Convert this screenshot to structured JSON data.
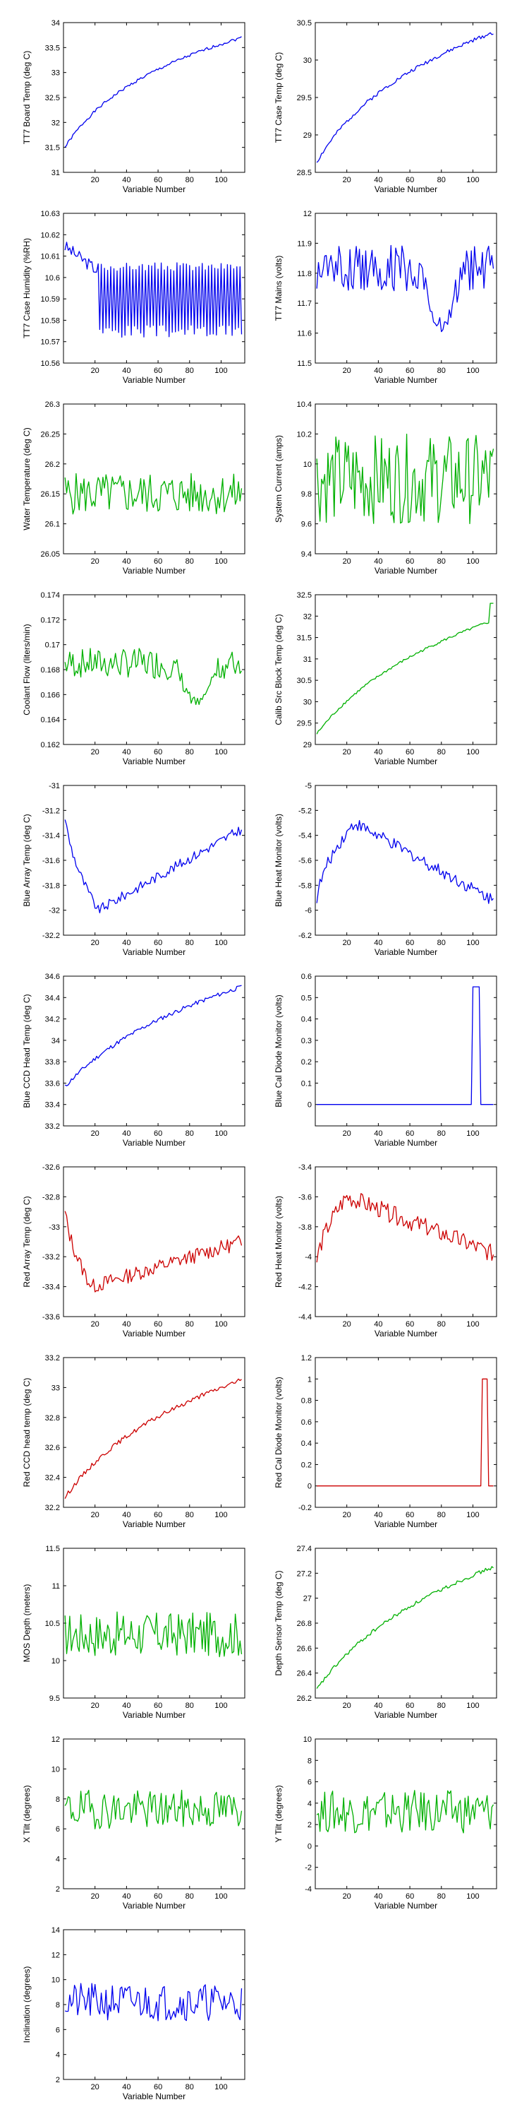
{
  "colors": {
    "blue": "#0000ee",
    "green": "#00b000",
    "red": "#cc0000",
    "axis": "#000000"
  },
  "chart_data": [
    {
      "type": "line",
      "color": "blue",
      "xlabel": "Variable Number",
      "ylabel": "TT7 Board Temp (deg C)",
      "xlim": [
        0,
        115
      ],
      "ylim": [
        31,
        34
      ],
      "xticks": [
        "20",
        "40",
        "60",
        "80",
        "100"
      ],
      "yticks": [
        "31",
        "31.5",
        "32",
        "32.5",
        "33",
        "33.5",
        "34"
      ],
      "gen": {
        "shape": "log",
        "from": 31.45,
        "to": 33.7,
        "k": 25,
        "noise": 0.03,
        "seed": 1
      },
      "series": []
    },
    {
      "type": "line",
      "color": "blue",
      "xlabel": "Variable Number",
      "ylabel": "TT7 Case Temp (deg C)",
      "xlim": [
        0,
        115
      ],
      "ylim": [
        28.5,
        30.5
      ],
      "xticks": [
        "20",
        "40",
        "60",
        "80",
        "100"
      ],
      "yticks": [
        "28.5",
        "29",
        "29.5",
        "30",
        "30.5"
      ],
      "gen": {
        "shape": "log",
        "from": 28.6,
        "to": 30.37,
        "k": 30,
        "noise": 0.025,
        "seed": 2
      },
      "series": []
    },
    {
      "type": "line",
      "color": "blue",
      "xlabel": "Variable Number",
      "ylabel": "TT7 Case Humidity (%RH)",
      "xlim": [
        0,
        115
      ],
      "ylim": [
        10.56,
        10.63
      ],
      "xticks": [
        "20",
        "40",
        "60",
        "80",
        "100"
      ],
      "yticks": [
        "10.56",
        "10.57",
        "10.58",
        "10.59",
        "10.6",
        "10.61",
        "10.62",
        "10.63"
      ],
      "gen": {
        "shape": "saw",
        "from": 10.615,
        "to": 10.575,
        "hi": 10.605,
        "noise": 0.001,
        "seed": 3
      },
      "series": []
    },
    {
      "type": "line",
      "color": "blue",
      "xlabel": "Variable Number",
      "ylabel": "TT7 Mains (volts)",
      "xlim": [
        0,
        115
      ],
      "ylim": [
        11.5,
        12
      ],
      "xticks": [
        "20",
        "40",
        "60",
        "80",
        "100"
      ],
      "yticks": [
        "11.5",
        "11.6",
        "11.7",
        "11.8",
        "11.9",
        "12"
      ],
      "gen": {
        "shape": "noise",
        "base": 11.82,
        "amp": 0.08,
        "dip": [
          80,
          11.62
        ],
        "seed": 4
      },
      "series": []
    },
    {
      "type": "line",
      "color": "green",
      "xlabel": "Variable Number",
      "ylabel": "Water Temperature (deg C)",
      "xlim": [
        0,
        115
      ],
      "ylim": [
        26.05,
        26.3
      ],
      "xticks": [
        "20",
        "40",
        "60",
        "80",
        "100"
      ],
      "yticks": [
        "26.05",
        "26.1",
        "26.15",
        "26.2",
        "26.25",
        "26.3"
      ],
      "gen": {
        "shape": "noise",
        "base": 26.15,
        "amp": 0.035,
        "seed": 5
      },
      "series": []
    },
    {
      "type": "line",
      "color": "green",
      "xlabel": "Variable Number",
      "ylabel": "System Current (amps)",
      "xlim": [
        0,
        115
      ],
      "ylim": [
        9.4,
        10.4
      ],
      "xticks": [
        "20",
        "40",
        "60",
        "80",
        "100"
      ],
      "yticks": [
        "9.4",
        "9.6",
        "9.8",
        "10",
        "10.2",
        "10.4"
      ],
      "gen": {
        "shape": "noise",
        "base": 9.9,
        "amp": 0.3,
        "seed": 6
      },
      "series": []
    },
    {
      "type": "line",
      "color": "green",
      "xlabel": "Variable Number",
      "ylabel": "Coolant Flow (liters/min)",
      "xlim": [
        0,
        115
      ],
      "ylim": [
        0.162,
        0.174
      ],
      "xticks": [
        "20",
        "40",
        "60",
        "80",
        "100"
      ],
      "yticks": [
        "0.162",
        "0.164",
        "0.166",
        "0.168",
        "0.17",
        "0.172",
        "0.174"
      ],
      "gen": {
        "shape": "noise",
        "base": 0.1685,
        "amp": 0.0012,
        "dip": [
          85,
          0.1652
        ],
        "seed": 7
      },
      "series": []
    },
    {
      "type": "line",
      "color": "green",
      "xlabel": "Variable Number",
      "ylabel": "Calib Src Block Temp (deg C)",
      "xlim": [
        0,
        115
      ],
      "ylim": [
        29,
        32.5
      ],
      "xticks": [
        "20",
        "40",
        "60",
        "80",
        "100"
      ],
      "yticks": [
        "29",
        "29.5",
        "30",
        "30.5",
        "31",
        "31.5",
        "32",
        "32.5"
      ],
      "gen": {
        "shape": "log",
        "from": 29.2,
        "to": 31.9,
        "k": 40,
        "noise": 0.03,
        "endjump": 32.3,
        "seed": 8
      },
      "series": []
    },
    {
      "type": "line",
      "color": "blue",
      "xlabel": "Variable Number",
      "ylabel": "Blue Array Temp (deg C)",
      "xlim": [
        0,
        115
      ],
      "ylim": [
        -32.2,
        -31
      ],
      "xticks": [
        "20",
        "40",
        "60",
        "80",
        "100"
      ],
      "yticks": [
        "-32.2",
        "-32",
        "-31.8",
        "-31.6",
        "-31.4",
        "-31.2",
        "-31"
      ],
      "gen": {
        "shape": "dipRecover",
        "start": -31.05,
        "low": -32.0,
        "lowAt": 22,
        "to": -31.35,
        "noise": 0.04,
        "seed": 9
      },
      "series": []
    },
    {
      "type": "line",
      "color": "blue",
      "xlabel": "Variable Number",
      "ylabel": "Blue Heat Monitor (volts)",
      "xlim": [
        0,
        115
      ],
      "ylim": [
        -6.2,
        -5
      ],
      "xticks": [
        "20",
        "40",
        "60",
        "80",
        "100"
      ],
      "yticks": [
        "-6.2",
        "-6",
        "-5.8",
        "-5.6",
        "-5.4",
        "-5.2",
        "-5"
      ],
      "gen": {
        "shape": "hump",
        "start": -6.05,
        "peak": -5.3,
        "peakAt": 25,
        "to": -5.92,
        "noise": 0.05,
        "seed": 10
      },
      "series": []
    },
    {
      "type": "line",
      "color": "blue",
      "xlabel": "Variable Number",
      "ylabel": "Blue CCD Head Temp (deg C)",
      "xlim": [
        0,
        115
      ],
      "ylim": [
        33.2,
        34.6
      ],
      "xticks": [
        "20",
        "40",
        "60",
        "80",
        "100"
      ],
      "yticks": [
        "33.2",
        "33.4",
        "33.6",
        "33.8",
        "34",
        "34.2",
        "34.4",
        "34.6"
      ],
      "gen": {
        "shape": "log",
        "from": 33.55,
        "to": 34.5,
        "k": 45,
        "noise": 0.02,
        "seed": 11
      },
      "series": []
    },
    {
      "type": "line",
      "color": "blue",
      "xlabel": "Variable Number",
      "ylabel": "Blue Cal Diode Monitor (volts)",
      "xlim": [
        0,
        115
      ],
      "ylim": [
        -0.1,
        0.6
      ],
      "xticks": [
        "20",
        "40",
        "60",
        "80",
        "100"
      ],
      "yticks": [
        "0",
        "0.1",
        "0.2",
        "0.3",
        "0.4",
        "0.5",
        "0.6"
      ],
      "gen": {
        "shape": "pulse",
        "base": 0,
        "high": 0.55,
        "pulse": [
          100,
          104
        ],
        "seed": 12
      },
      "series": []
    },
    {
      "type": "line",
      "color": "red",
      "xlabel": "Variable Number",
      "ylabel": "Red Array Temp (deg C)",
      "xlim": [
        0,
        115
      ],
      "ylim": [
        -33.6,
        -32.6
      ],
      "xticks": [
        "20",
        "40",
        "60",
        "80",
        "100"
      ],
      "yticks": [
        "-33.6",
        "-33.4",
        "-33.2",
        "-33",
        "-32.8",
        "-32.6"
      ],
      "gen": {
        "shape": "dipRecover",
        "start": -32.75,
        "low": -33.4,
        "lowAt": 18,
        "to": -33.1,
        "noise": 0.05,
        "seed": 13
      },
      "series": []
    },
    {
      "type": "line",
      "color": "red",
      "xlabel": "Variable Number",
      "ylabel": "Red Heat Monitor (volts)",
      "xlim": [
        0,
        115
      ],
      "ylim": [
        -4.4,
        -3.4
      ],
      "xticks": [
        "20",
        "40",
        "60",
        "80",
        "100"
      ],
      "yticks": [
        "-4.4",
        "-4.2",
        "-4",
        "-3.8",
        "-3.6",
        "-3.4"
      ],
      "gen": {
        "shape": "hump",
        "start": -4.15,
        "peak": -3.6,
        "peakAt": 20,
        "to": -3.98,
        "noise": 0.06,
        "seed": 14
      },
      "series": []
    },
    {
      "type": "line",
      "color": "red",
      "xlabel": "Variable Number",
      "ylabel": "Red CCD head temp (deg C)",
      "xlim": [
        0,
        115
      ],
      "ylim": [
        32.2,
        33.2
      ],
      "xticks": [
        "20",
        "40",
        "60",
        "80",
        "100"
      ],
      "yticks": [
        "32.2",
        "32.4",
        "32.6",
        "32.8",
        "33",
        "33.2"
      ],
      "gen": {
        "shape": "log",
        "from": 32.25,
        "to": 33.05,
        "k": 35,
        "noise": 0.015,
        "seed": 15
      },
      "series": []
    },
    {
      "type": "line",
      "color": "red",
      "xlabel": "Variable Number",
      "ylabel": "Red Cal Diode Monitor (volts)",
      "xlim": [
        0,
        115
      ],
      "ylim": [
        -0.2,
        1.2
      ],
      "xticks": [
        "20",
        "40",
        "60",
        "80",
        "100"
      ],
      "yticks": [
        "-0.2",
        "0",
        "0.2",
        "0.4",
        "0.6",
        "0.8",
        "1",
        "1.2"
      ],
      "gen": {
        "shape": "pulse",
        "base": 0,
        "high": 1.0,
        "pulse": [
          106,
          109
        ],
        "seed": 16
      },
      "series": []
    },
    {
      "type": "line",
      "color": "green",
      "xlabel": "Variable Number",
      "ylabel": "MOS Depth (meters)",
      "xlim": [
        0,
        115
      ],
      "ylim": [
        9.5,
        11.5
      ],
      "xticks": [
        "20",
        "40",
        "60",
        "80",
        "100"
      ],
      "yticks": [
        "9.5",
        "10",
        "10.5",
        "11",
        "11.5"
      ],
      "gen": {
        "shape": "noise",
        "base": 10.35,
        "amp": 0.3,
        "seed": 17
      },
      "series": []
    },
    {
      "type": "line",
      "color": "green",
      "xlabel": "Variable Number",
      "ylabel": "Depth Sensor Temp (deg C)",
      "xlim": [
        0,
        115
      ],
      "ylim": [
        26.2,
        27.4
      ],
      "xticks": [
        "20",
        "40",
        "60",
        "80",
        "100"
      ],
      "yticks": [
        "26.2",
        "26.4",
        "26.6",
        "26.8",
        "27",
        "27.2",
        "27.4"
      ],
      "gen": {
        "shape": "log",
        "from": 26.25,
        "to": 27.25,
        "k": 40,
        "noise": 0.015,
        "seed": 18
      },
      "series": []
    },
    {
      "type": "line",
      "color": "green",
      "xlabel": "Variable Number",
      "ylabel": "X Tilt (degrees)",
      "xlim": [
        0,
        115
      ],
      "ylim": [
        2,
        12
      ],
      "xticks": [
        "20",
        "40",
        "60",
        "80",
        "100"
      ],
      "yticks": [
        "2",
        "4",
        "6",
        "8",
        "10",
        "12"
      ],
      "gen": {
        "shape": "noise",
        "base": 7.3,
        "amp": 1.3,
        "seed": 19
      },
      "series": []
    },
    {
      "type": "line",
      "color": "green",
      "xlabel": "Variable Number",
      "ylabel": "Y Tilt (degrees)",
      "xlim": [
        0,
        115
      ],
      "ylim": [
        -4,
        10
      ],
      "xticks": [
        "20",
        "40",
        "60",
        "80",
        "100"
      ],
      "yticks": [
        "-4",
        "-2",
        "0",
        "2",
        "4",
        "6",
        "8",
        "10"
      ],
      "gen": {
        "shape": "noise",
        "base": 3.2,
        "amp": 2.0,
        "seed": 20
      },
      "series": []
    },
    {
      "type": "line",
      "color": "blue",
      "xlabel": "Variable Number",
      "ylabel": "Inclination (degrees)",
      "xlim": [
        0,
        115
      ],
      "ylim": [
        2,
        14
      ],
      "xticks": [
        "20",
        "40",
        "60",
        "80",
        "100"
      ],
      "yticks": [
        "2",
        "4",
        "6",
        "8",
        "10",
        "12",
        "14"
      ],
      "gen": {
        "shape": "noise",
        "base": 8.2,
        "amp": 1.5,
        "seed": 21
      },
      "series": []
    }
  ]
}
